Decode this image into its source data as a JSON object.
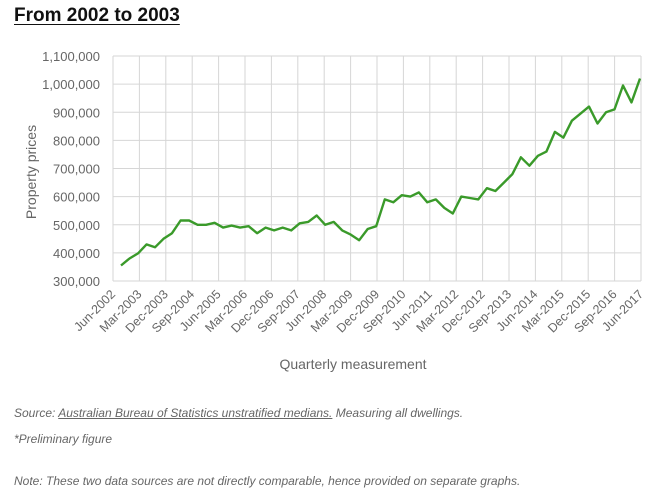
{
  "title": "From 2002 to 2003",
  "source_prefix": "Source: ",
  "source_link": "Australian Bureau of Statistics unstratified medians.",
  "source_suffix": " Measuring all dwellings.",
  "preliminary": "*Preliminary figure",
  "note": "Note: These two data sources are not directly comparable, hence provided on separate graphs.",
  "colors": {
    "line": "#3a9a2a",
    "grid": "#d6d6d6",
    "text": "#666666"
  },
  "chart_data": {
    "type": "line",
    "title": "From 2002 to 2003",
    "xlabel": "Quarterly measurement",
    "ylabel": "Property prices",
    "ylim": [
      300000,
      1100000
    ],
    "yticks": [
      300000,
      400000,
      500000,
      600000,
      700000,
      800000,
      900000,
      1000000,
      1100000
    ],
    "ytick_labels": [
      "300,000",
      "400,000",
      "500,000",
      "600,000",
      "700,000",
      "800,000",
      "900,000",
      "1,000,000",
      "1,100,000"
    ],
    "xtick_labels": [
      "Jun-2002",
      "Mar-2003",
      "Dec-2003",
      "Sep-2004",
      "Jun-2005",
      "Mar-2006",
      "Dec-2006",
      "Sep-2007",
      "Jun-2008",
      "Mar-2009",
      "Dec-2009",
      "Sep-2010",
      "Jun-2011",
      "Mar-2012",
      "Dec-2012",
      "Sep-2013",
      "Jun-2014",
      "Mar-2015",
      "Dec-2015",
      "Sep-2016",
      "Jun-2017"
    ],
    "grid": true,
    "series": [
      {
        "values": [
          355000,
          380000,
          398000,
          430000,
          420000,
          450000,
          470000,
          515000,
          515000,
          500000,
          500000,
          507000,
          490000,
          497000,
          490000,
          495000,
          470000,
          490000,
          480000,
          490000,
          480000,
          505000,
          510000,
          533000,
          500000,
          510000,
          480000,
          465000,
          445000,
          485000,
          495000,
          590000,
          580000,
          605000,
          600000,
          615000,
          580000,
          590000,
          560000,
          540000,
          600000,
          595000,
          590000,
          630000,
          620000,
          650000,
          680000,
          740000,
          710000,
          745000,
          760000,
          830000,
          810000,
          870000,
          895000,
          920000,
          860000,
          900000,
          910000,
          995000,
          935000,
          1020000
        ]
      }
    ]
  }
}
